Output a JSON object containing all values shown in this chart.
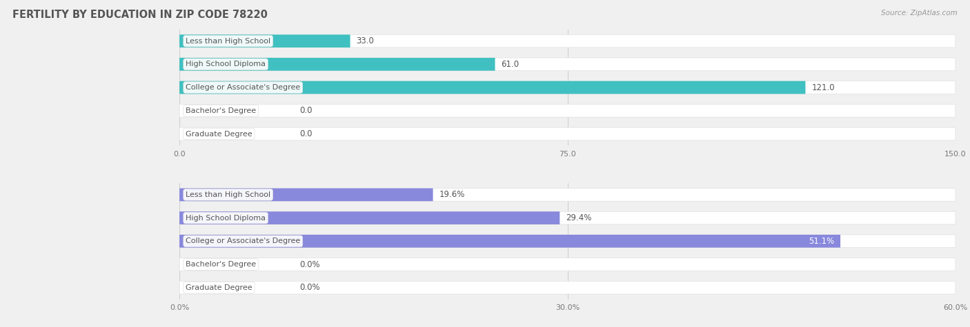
{
  "title": "FERTILITY BY EDUCATION IN ZIP CODE 78220",
  "source": "Source: ZipAtlas.com",
  "top_chart": {
    "categories": [
      "Less than High School",
      "High School Diploma",
      "College or Associate's Degree",
      "Bachelor's Degree",
      "Graduate Degree"
    ],
    "values": [
      33.0,
      61.0,
      121.0,
      0.0,
      0.0
    ],
    "labels": [
      "33.0",
      "61.0",
      "121.0",
      "0.0",
      "0.0"
    ],
    "bar_color": "#40c0c0",
    "xlim": [
      0,
      150.0
    ],
    "xticks": [
      0.0,
      75.0,
      150.0
    ],
    "xtick_labels": [
      "0.0",
      "75.0",
      "150.0"
    ]
  },
  "bottom_chart": {
    "categories": [
      "Less than High School",
      "High School Diploma",
      "College or Associate's Degree",
      "Bachelor's Degree",
      "Graduate Degree"
    ],
    "values": [
      19.6,
      29.4,
      51.1,
      0.0,
      0.0
    ],
    "labels": [
      "19.6%",
      "29.4%",
      "51.1%",
      "0.0%",
      "0.0%"
    ],
    "bar_color": "#8888dd",
    "xlim": [
      0,
      60.0
    ],
    "xticks": [
      0.0,
      30.0,
      60.0
    ],
    "xtick_labels": [
      "0.0%",
      "30.0%",
      "60.0%"
    ]
  },
  "bg_color": "#f0f0f0",
  "bar_bg_color": "#ffffff",
  "title_color": "#555555",
  "source_color": "#999999",
  "label_font_size": 8.5,
  "category_font_size": 8,
  "tick_font_size": 8,
  "title_font_size": 10.5,
  "source_font_size": 7.5,
  "bar_height": 0.55,
  "bar_spacing": 1.0
}
